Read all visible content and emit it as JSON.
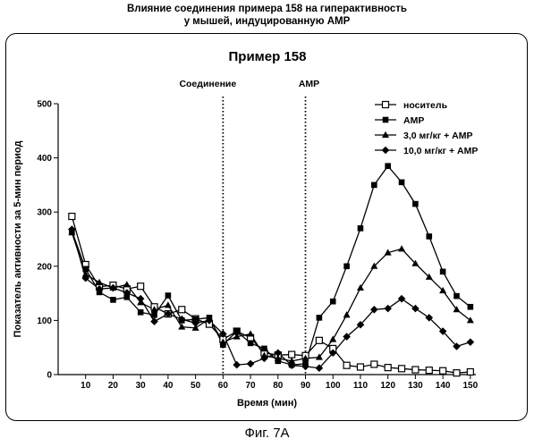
{
  "header": {
    "line1": "Влияние соединения примера 158 на гиперактивность",
    "line2": "у мышей, индуцированную AMP"
  },
  "figure_caption": "Фиг. 7А",
  "chart_data": {
    "type": "line",
    "title": "Пример 158",
    "xlabel": "Время (мин)",
    "ylabel": "Показатель активности за 5-мин период",
    "xlim": [
      0,
      152
    ],
    "ylim": [
      0,
      500
    ],
    "xticks": [
      10,
      20,
      30,
      40,
      50,
      60,
      70,
      80,
      90,
      100,
      110,
      120,
      130,
      140,
      150
    ],
    "yticks": [
      0,
      100,
      200,
      300,
      400,
      500
    ],
    "grid": false,
    "legend_position": "top-right",
    "annotations": [
      {
        "label": "Соединение",
        "x": 60
      },
      {
        "label": "AMP",
        "x": 90
      }
    ],
    "x": [
      5,
      10,
      15,
      20,
      25,
      30,
      35,
      40,
      45,
      50,
      55,
      60,
      65,
      70,
      75,
      80,
      85,
      90,
      95,
      100,
      105,
      110,
      115,
      120,
      125,
      130,
      135,
      140,
      145,
      150
    ],
    "series": [
      {
        "name": "носитель",
        "marker": "square-open",
        "values": [
          292,
          203,
          162,
          165,
          158,
          163,
          125,
          112,
          120,
          103,
          93,
          65,
          80,
          68,
          40,
          36,
          37,
          35,
          63,
          48,
          17,
          14,
          19,
          13,
          11,
          9,
          8,
          7,
          3,
          5
        ]
      },
      {
        "name": "AMP",
        "marker": "square-filled",
        "values": [
          265,
          195,
          152,
          138,
          143,
          115,
          110,
          146,
          100,
          102,
          105,
          55,
          80,
          58,
          48,
          25,
          18,
          20,
          105,
          135,
          200,
          270,
          350,
          385,
          355,
          315,
          255,
          190,
          145,
          125
        ]
      },
      {
        "name": "3,0 мг/кг + AMP",
        "marker": "triangle-filled",
        "values": [
          262,
          185,
          170,
          160,
          166,
          133,
          120,
          128,
          88,
          86,
          103,
          60,
          70,
          75,
          35,
          30,
          25,
          30,
          32,
          65,
          110,
          160,
          200,
          225,
          232,
          205,
          180,
          155,
          120,
          100
        ]
      },
      {
        "name": "10,0 мг/кг + AMP",
        "marker": "diamond-filled",
        "values": [
          268,
          178,
          158,
          160,
          151,
          140,
          98,
          112,
          102,
          95,
          100,
          75,
          18,
          20,
          30,
          40,
          17,
          15,
          12,
          40,
          70,
          92,
          120,
          122,
          140,
          122,
          105,
          80,
          52,
          60
        ]
      }
    ]
  }
}
